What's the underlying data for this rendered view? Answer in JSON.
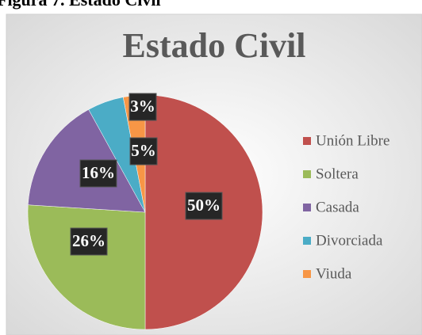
{
  "caption": "Figura 7. Estado Civil",
  "chart_data": {
    "type": "pie",
    "title": "Estado Civil",
    "categories": [
      "Unión Libre",
      "Soltera",
      "Casada",
      "Divorciada",
      "Viuda"
    ],
    "values": [
      50,
      26,
      16,
      5,
      3
    ],
    "value_labels": [
      "50%",
      "26%",
      "16%",
      "5%",
      "3%"
    ],
    "colors": [
      "#c0504d",
      "#9bbb59",
      "#8064a2",
      "#4bacc6",
      "#f79646"
    ],
    "legend": "right"
  }
}
